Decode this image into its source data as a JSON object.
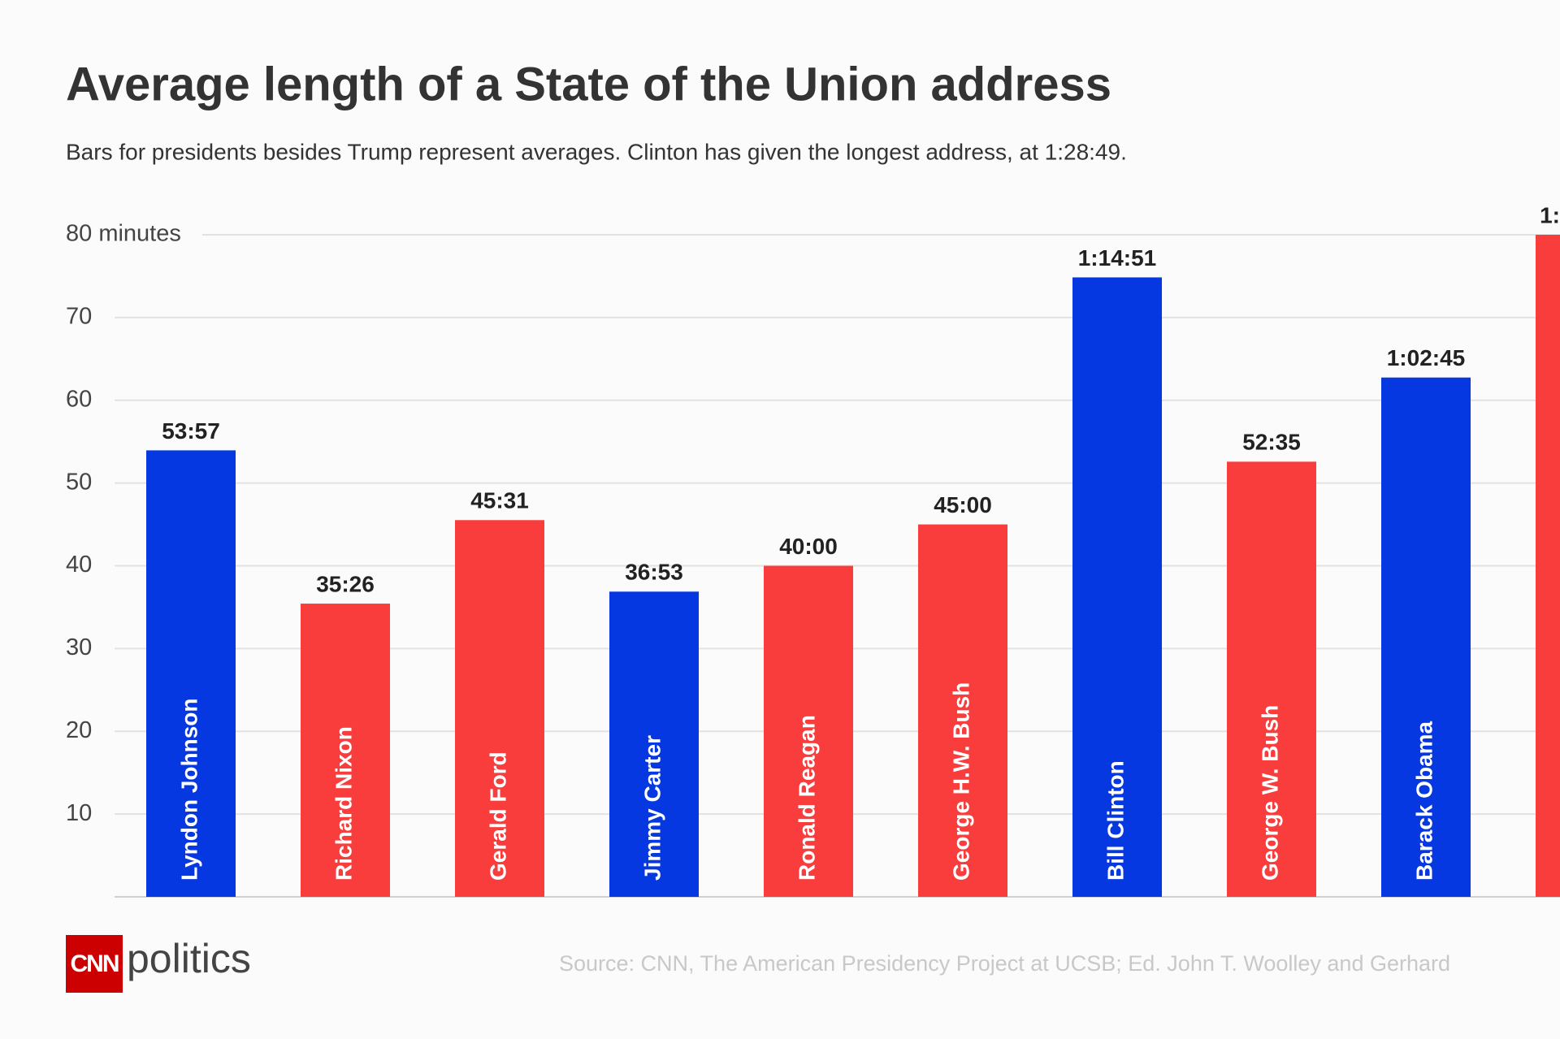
{
  "chart_data": {
    "type": "bar",
    "title": "Average length of a State of the Union address",
    "subtitle": "Bars for presidents besides Trump represent averages. Clinton has given the longest address, at 1:28:49.",
    "categories": [
      "Lyndon Johnson",
      "Richard Nixon",
      "Gerald Ford",
      "Jimmy Carter",
      "Ronald Reagan",
      "George H.W. Bush",
      "Bill Clinton",
      "George W. Bush",
      "Barack Obama",
      null
    ],
    "values": [
      53.95,
      35.43,
      45.52,
      36.88,
      40,
      45,
      74.85,
      52.58,
      62.75,
      80
    ],
    "value_labels": [
      "53:57",
      "35:26",
      "45:31",
      "36:53",
      "40:00",
      "45:00",
      "1:14:51",
      "52:35",
      "1:02:45",
      "1:"
    ],
    "colors": [
      "#0538e0",
      "#f93c3c",
      "#f93c3c",
      "#0538e0",
      "#f93c3c",
      "#f93c3c",
      "#0538e0",
      "#f93c3c",
      "#0538e0",
      "#f93c3c"
    ],
    "ylim": [
      0,
      80
    ],
    "yticks": [
      10,
      20,
      30,
      40,
      50,
      60,
      70,
      {
        "value": 80,
        "label": "80 minutes"
      }
    ],
    "grid": true,
    "source": "Source: CNN, The American Presidency Project at UCSB; Ed. John T. Woolley and Gerhard",
    "logo_brand": "CNN",
    "logo_word": "politics"
  }
}
